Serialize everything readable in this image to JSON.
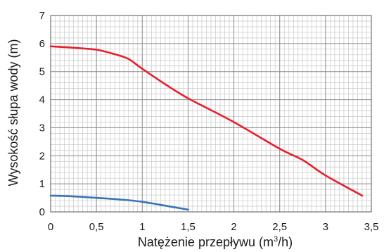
{
  "chart_data": {
    "type": "line",
    "title": "",
    "xlabel": "Natężenie przepływu (m³/h)",
    "xlabel_base": "Natężenie przepływu (m",
    "xlabel_sup": "3",
    "xlabel_tail": "/h)",
    "ylabel": "Wysokość słupa wody (m)",
    "xlim": [
      0,
      3.5
    ],
    "ylim": [
      0,
      7
    ],
    "x_ticks": [
      "0",
      "0,5",
      "1",
      "1,5",
      "2",
      "2,5",
      "3",
      "3,5"
    ],
    "y_ticks": [
      "0",
      "1",
      "2",
      "3",
      "4",
      "5",
      "6",
      "7"
    ],
    "grid": true,
    "minor_grid_divisions": {
      "x": 10,
      "y": 5
    },
    "series": [
      {
        "color": "#e8202a",
        "x": [
          0,
          0.25,
          0.5,
          0.7,
          0.85,
          1.0,
          1.25,
          1.5,
          2.0,
          2.5,
          2.75,
          3.0,
          3.4
        ],
        "y": [
          5.9,
          5.85,
          5.78,
          5.62,
          5.45,
          5.1,
          4.55,
          4.05,
          3.2,
          2.25,
          1.85,
          1.3,
          0.58
        ]
      },
      {
        "color": "#3a73b6",
        "x": [
          0,
          0.25,
          0.5,
          0.8,
          1.0,
          1.2,
          1.5
        ],
        "y": [
          0.58,
          0.55,
          0.5,
          0.43,
          0.36,
          0.25,
          0.08
        ]
      }
    ]
  }
}
